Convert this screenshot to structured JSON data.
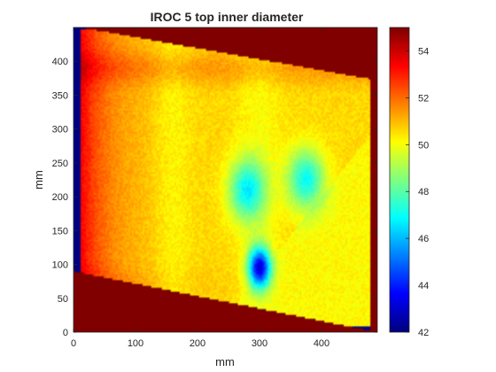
{
  "chart_data": {
    "type": "heatmap",
    "title": "IROC 5 top inner diameter",
    "xlabel": "mm",
    "ylabel": "mm",
    "xlim": [
      0,
      490
    ],
    "ylim": [
      0,
      450
    ],
    "xticks": [
      0,
      100,
      200,
      300,
      400
    ],
    "yticks": [
      0,
      50,
      100,
      150,
      200,
      250,
      300,
      350,
      400
    ],
    "colorbar": {
      "range": [
        42,
        55
      ],
      "ticks": [
        42,
        44,
        46,
        48,
        50,
        52,
        54
      ],
      "colormap": "jet"
    },
    "masked_value": 42,
    "background_mask_color": "#800000",
    "field_base_value": 50.6,
    "features": [
      {
        "kind": "band",
        "description": "masked diagonal strip across top",
        "value": 42
      },
      {
        "kind": "band",
        "description": "masked diagonal strip across bottom",
        "value": 42
      },
      {
        "kind": "region",
        "description": "lighter right-lower triangle",
        "value": 50
      },
      {
        "kind": "blob",
        "x": 300,
        "y": 95,
        "value": 43.5
      },
      {
        "kind": "blob",
        "x": 280,
        "y": 210,
        "value": 47
      },
      {
        "kind": "blob",
        "x": 375,
        "y": 225,
        "value": 47
      },
      {
        "kind": "edge",
        "description": "left edge low values",
        "value": 53.5
      }
    ]
  }
}
